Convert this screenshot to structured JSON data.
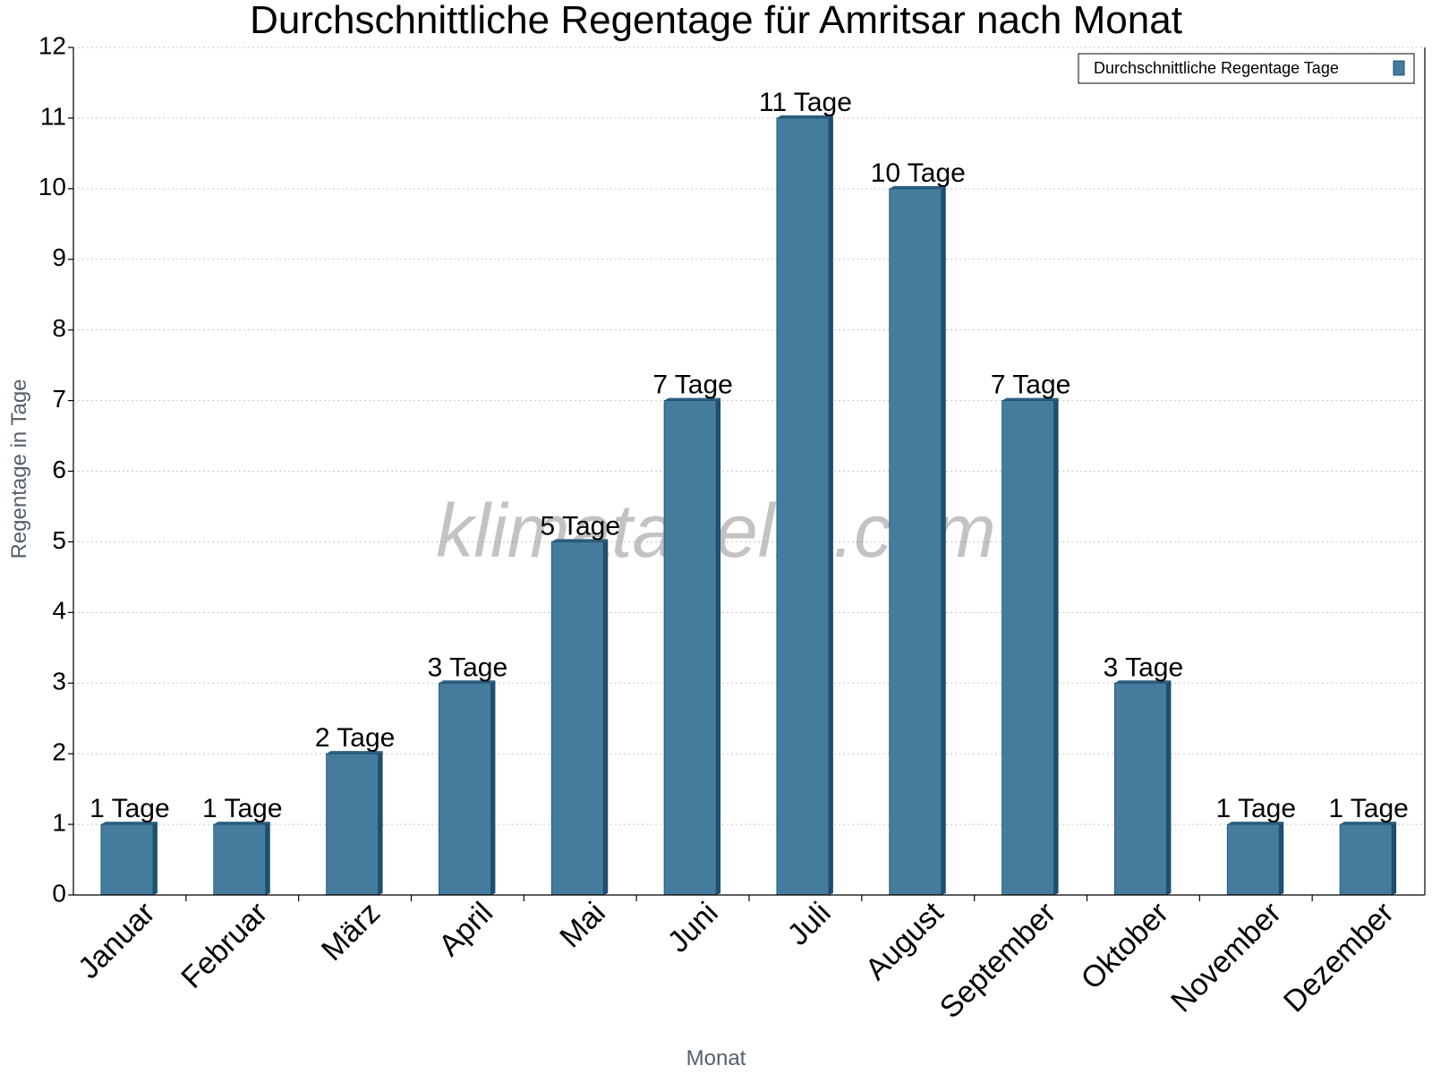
{
  "chart_data": {
    "type": "bar",
    "title": "Durchschnittliche Regentage für Amritsar nach Monat",
    "xlabel": "Monat",
    "ylabel": "Regentage in Tage",
    "categories": [
      "Januar",
      "Februar",
      "März",
      "April",
      "Mai",
      "Juni",
      "Juli",
      "August",
      "September",
      "Oktober",
      "November",
      "Dezember"
    ],
    "series": [
      {
        "name": "Durchschnittliche Regentage Tage",
        "values": [
          1,
          1,
          2,
          3,
          5,
          7,
          11,
          10,
          7,
          3,
          1,
          1
        ]
      }
    ],
    "data_labels": [
      "1 Tage",
      "1 Tage",
      "2 Tage",
      "3 Tage",
      "5 Tage",
      "7 Tage",
      "11 Tage",
      "10 Tage",
      "7 Tage",
      "3 Tage",
      "1 Tage",
      "1 Tage"
    ],
    "ylim": [
      0,
      12
    ],
    "yticks": [
      0,
      1,
      2,
      3,
      4,
      5,
      6,
      7,
      8,
      9,
      10,
      11,
      12
    ],
    "grid": true,
    "legend_position": "top-right",
    "watermark": "klimatabelle.com",
    "colors": {
      "bar_front": "#457b9d",
      "bar_side": "#1d4f6e",
      "bar_top": "#2a5f80"
    }
  }
}
